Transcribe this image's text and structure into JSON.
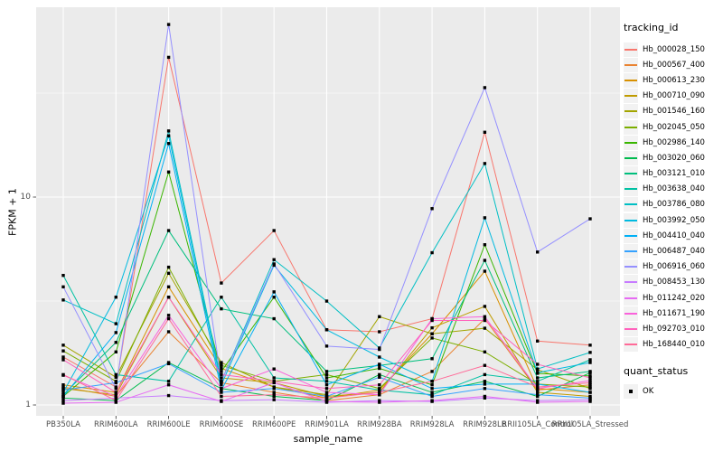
{
  "figure": {
    "bg": "#FFFFFF",
    "panel_bg": "#EBEBEB",
    "grid_color": "#FFFFFF",
    "tick_mark_color": "#333333",
    "tick_label_color": "#4D4D4D",
    "marker_color": "#000000",
    "legend_key_bg": "#F2F2F2"
  },
  "chart_data": {
    "type": "line",
    "title": "",
    "xlabel": "sample_name",
    "ylabel": "FPKM + 1",
    "y_scale": "log10",
    "ylim": [
      0.95,
      90
    ],
    "y_ticks": [
      {
        "label": "1",
        "value": 1
      },
      {
        "label": "10",
        "value": 10
      }
    ],
    "y_minor_values": [
      3.1623,
      31.623
    ],
    "grid": true,
    "legend_position": "right",
    "marker_shape": "filled-square",
    "categories": [
      "PB350LA",
      "RRIM600LA",
      "RRIM600LE",
      "RRIM600SE",
      "RRIM600PE",
      "RRIM901LA",
      "RRIM928BA",
      "RRIM928LA",
      "RRIM928LB",
      "RRII105LA_Control",
      "RRII105LA_Stressed"
    ],
    "legend_title": "tracking_id",
    "quant_legend": {
      "title": "quant_status",
      "items": [
        "OK"
      ]
    },
    "series": [
      {
        "name": "Hb_000028_150",
        "color": "#F8766D",
        "values": [
          1.7,
          1.22,
          47.0,
          3.86,
          6.9,
          2.3,
          2.25,
          2.6,
          20.5,
          2.03,
          1.94
        ]
      },
      {
        "name": "Hb_000567_400",
        "color": "#EA8331",
        "values": [
          1.22,
          1.1,
          2.25,
          1.28,
          1.15,
          1.05,
          1.12,
          1.45,
          2.6,
          1.18,
          1.25
        ]
      },
      {
        "name": "Hb_000613_230",
        "color": "#D89000",
        "values": [
          1.25,
          1.15,
          3.7,
          1.5,
          1.22,
          1.08,
          1.18,
          2.2,
          4.4,
          1.2,
          1.15
        ]
      },
      {
        "name": "Hb_000710_090",
        "color": "#C09B00",
        "values": [
          1.2,
          1.12,
          3.3,
          1.35,
          1.28,
          1.1,
          1.15,
          2.35,
          2.98,
          1.15,
          1.1
        ]
      },
      {
        "name": "Hb_001546_160",
        "color": "#A3A500",
        "values": [
          1.94,
          1.36,
          4.3,
          1.6,
          1.22,
          1.12,
          2.66,
          2.2,
          2.34,
          1.48,
          1.2
        ]
      },
      {
        "name": "Hb_002045_050",
        "color": "#7CAE00",
        "values": [
          1.82,
          1.3,
          4.6,
          1.55,
          1.3,
          1.4,
          1.2,
          2.1,
          1.8,
          1.26,
          1.22
        ]
      },
      {
        "name": "Hb_002986_140",
        "color": "#39B600",
        "values": [
          1.1,
          1.8,
          13.2,
          1.45,
          3.3,
          1.35,
          1.5,
          1.25,
          5.9,
          1.42,
          1.38
        ]
      },
      {
        "name": "Hb_003020_060",
        "color": "#00BB4E",
        "values": [
          1.08,
          1.05,
          1.6,
          1.2,
          1.1,
          1.05,
          1.4,
          1.15,
          1.3,
          1.1,
          1.43
        ]
      },
      {
        "name": "Hb_003121_010",
        "color": "#00BF7D",
        "values": [
          1.12,
          2.0,
          6.9,
          2.9,
          2.6,
          1.45,
          1.55,
          1.67,
          4.96,
          1.35,
          1.45
        ]
      },
      {
        "name": "Hb_003638_040",
        "color": "#00C1A3",
        "values": [
          4.2,
          1.4,
          1.3,
          3.3,
          1.35,
          1.3,
          1.18,
          1.12,
          1.4,
          1.3,
          1.65
        ]
      },
      {
        "name": "Hb_003786_080",
        "color": "#00BFC4",
        "values": [
          3.2,
          2.46,
          20.8,
          1.3,
          5.0,
          3.16,
          1.88,
          5.4,
          14.5,
          1.49,
          1.79
        ]
      },
      {
        "name": "Hb_003992_050",
        "color": "#00BAE0",
        "values": [
          1.15,
          3.3,
          19.7,
          1.25,
          4.7,
          2.3,
          1.7,
          1.3,
          7.95,
          1.43,
          1.6
        ]
      },
      {
        "name": "Hb_004410_040",
        "color": "#00B0F6",
        "values": [
          1.1,
          2.23,
          18.1,
          1.18,
          3.5,
          1.25,
          1.57,
          1.2,
          1.26,
          1.26,
          1.15
        ]
      },
      {
        "name": "Hb_006487_040",
        "color": "#35A2FF",
        "values": [
          1.18,
          1.28,
          1.58,
          1.15,
          1.2,
          1.1,
          1.36,
          1.1,
          1.2,
          1.12,
          1.08
        ]
      },
      {
        "name": "Hb_006916_060",
        "color": "#9590FF",
        "values": [
          3.7,
          1.2,
          67.6,
          1.3,
          4.77,
          1.92,
          1.85,
          8.8,
          33.6,
          5.44,
          7.86
        ]
      },
      {
        "name": "Hb_008453_130",
        "color": "#C77CFF",
        "values": [
          1.05,
          1.08,
          1.11,
          1.05,
          1.06,
          1.03,
          1.05,
          1.04,
          1.08,
          1.05,
          1.06
        ]
      },
      {
        "name": "Hb_011242_020",
        "color": "#E76BF3",
        "values": [
          1.02,
          1.03,
          1.25,
          1.04,
          1.28,
          1.04,
          1.03,
          1.05,
          1.1,
          1.03,
          1.04
        ]
      },
      {
        "name": "Hb_011671_190",
        "color": "#FA62DB",
        "values": [
          1.39,
          1.1,
          2.7,
          1.2,
          1.49,
          1.15,
          1.12,
          2.6,
          2.66,
          1.2,
          1.31
        ]
      },
      {
        "name": "Hb_092703_010",
        "color": "#FF62BC",
        "values": [
          1.65,
          1.15,
          3.3,
          1.4,
          1.3,
          1.2,
          1.25,
          2.55,
          2.55,
          1.57,
          1.35
        ]
      },
      {
        "name": "Hb_168440_010",
        "color": "#FF6A98",
        "values": [
          1.4,
          1.05,
          2.6,
          1.1,
          1.12,
          1.08,
          1.15,
          1.3,
          1.55,
          1.22,
          1.28
        ]
      }
    ]
  }
}
